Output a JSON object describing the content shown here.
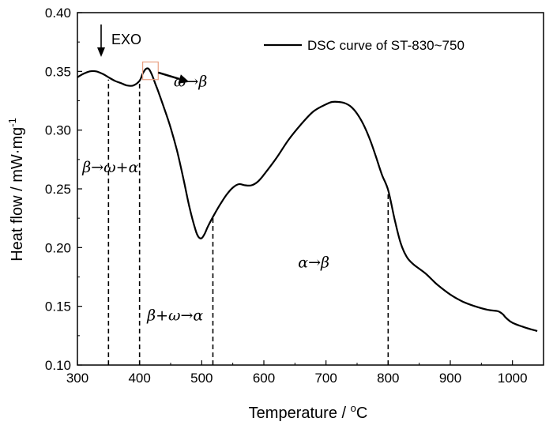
{
  "chart_data": {
    "type": "line",
    "xlabel": "Temperature / °C",
    "ylabel": "Heat flow / mW·mg",
    "ylabel_superscript": "-1",
    "xlim": [
      300,
      1050
    ],
    "ylim": [
      0.1,
      0.4
    ],
    "x_ticks": [
      300,
      400,
      500,
      600,
      700,
      800,
      900,
      1000
    ],
    "y_ticks": [
      0.1,
      0.15,
      0.2,
      0.25,
      0.3,
      0.35,
      0.4
    ],
    "y_tick_labels": [
      "0.10",
      "0.15",
      "0.20",
      "0.25",
      "0.30",
      "0.35",
      "0.40"
    ],
    "legend": {
      "position": "top-right",
      "entries": [
        "DSC curve of ST-830~750"
      ]
    },
    "exo_label": "EXO",
    "grid": false,
    "series": [
      {
        "name": "DSC curve of ST-830~750",
        "color": "#000000",
        "x": [
          300,
          310,
          320,
          330,
          340,
          350,
          360,
          370,
          380,
          390,
          400,
          405,
          410,
          415,
          420,
          425,
          430,
          440,
          450,
          460,
          470,
          480,
          490,
          495,
          500,
          505,
          510,
          520,
          530,
          540,
          550,
          560,
          570,
          580,
          590,
          600,
          620,
          640,
          660,
          680,
          700,
          710,
          720,
          730,
          740,
          750,
          760,
          770,
          780,
          790,
          800,
          810,
          820,
          830,
          840,
          850,
          860,
          870,
          880,
          900,
          920,
          940,
          960,
          975,
          980,
          985,
          990,
          1000,
          1020,
          1040
        ],
        "y": [
          0.345,
          0.348,
          0.35,
          0.35,
          0.348,
          0.345,
          0.342,
          0.34,
          0.338,
          0.338,
          0.342,
          0.348,
          0.352,
          0.352,
          0.347,
          0.34,
          0.333,
          0.318,
          0.302,
          0.283,
          0.26,
          0.235,
          0.215,
          0.209,
          0.208,
          0.212,
          0.218,
          0.228,
          0.237,
          0.245,
          0.251,
          0.254,
          0.253,
          0.253,
          0.256,
          0.262,
          0.276,
          0.292,
          0.305,
          0.316,
          0.322,
          0.324,
          0.324,
          0.323,
          0.32,
          0.314,
          0.305,
          0.293,
          0.278,
          0.262,
          0.249,
          0.225,
          0.204,
          0.192,
          0.186,
          0.182,
          0.178,
          0.173,
          0.168,
          0.16,
          0.154,
          0.15,
          0.147,
          0.146,
          0.145,
          0.143,
          0.14,
          0.136,
          0.132,
          0.129
        ]
      }
    ],
    "reference_lines": [
      {
        "x": 350,
        "y_top": 0.343
      },
      {
        "x": 400,
        "y_top": 0.342
      },
      {
        "x": 518,
        "y_top": 0.227
      },
      {
        "x": 800,
        "y_top": 0.249
      }
    ],
    "annotations": [
      {
        "text": "ω→β",
        "x": 455,
        "y": 0.337
      },
      {
        "text": "β→ω+α",
        "x": 308,
        "y": 0.264
      },
      {
        "text": "α→β",
        "x": 655,
        "y": 0.183
      },
      {
        "text": "β+ω→α",
        "x": 412,
        "y": 0.138
      }
    ],
    "highlight_box": {
      "x": [
        405,
        430
      ],
      "y": [
        0.343,
        0.358
      ],
      "color": "#e8a082"
    },
    "arrow": {
      "from": [
        430,
        0.349
      ],
      "to": [
        480,
        0.341
      ]
    }
  }
}
